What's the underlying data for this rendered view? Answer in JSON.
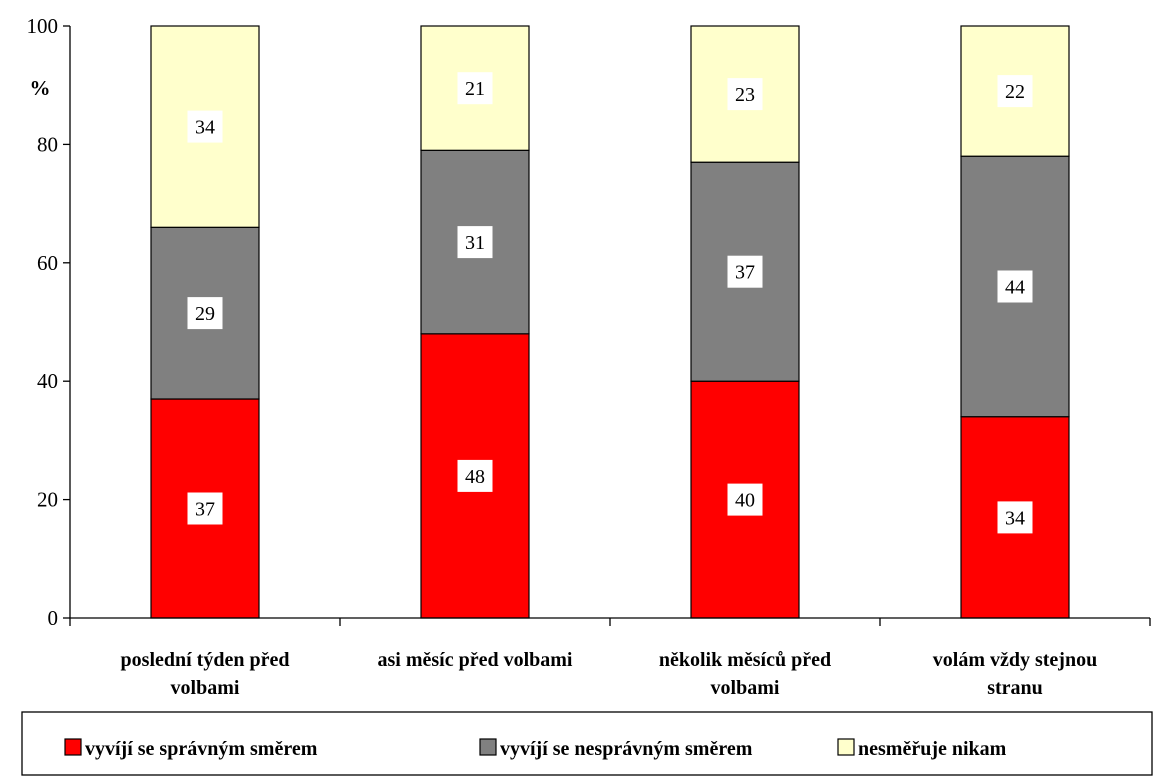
{
  "chart_data": {
    "type": "bar",
    "stacked": true,
    "title": "",
    "xlabel": "",
    "ylabel": "%",
    "ylim": [
      0,
      100
    ],
    "yticks": [
      0,
      20,
      40,
      60,
      80,
      100
    ],
    "grid": false,
    "legend_position": "bottom",
    "categories": [
      [
        "poslední týden před",
        "volbami"
      ],
      [
        "asi měsíc před volbami"
      ],
      [
        "několik měsíců před",
        "volbami"
      ],
      [
        "volám vždy stejnou",
        "stranu"
      ]
    ],
    "series": [
      {
        "name": "vyvíjí se správným směrem",
        "color": "#ff0000",
        "values": [
          37,
          48,
          40,
          34
        ]
      },
      {
        "name": "vyvíjí se nesprávným směrem",
        "color": "#808080",
        "values": [
          29,
          31,
          37,
          44
        ]
      },
      {
        "name": "nesměřuje nikam",
        "color": "#ffffcc",
        "values": [
          34,
          21,
          23,
          22
        ]
      }
    ]
  }
}
